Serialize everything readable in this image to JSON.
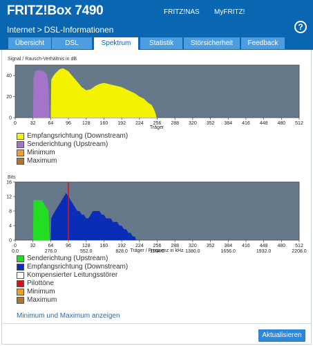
{
  "header": {
    "title": "FRITZ!Box 7490",
    "links": [
      "FRITZ!NAS",
      "MyFRITZ!"
    ]
  },
  "breadcrumb": {
    "parent": "Internet",
    "separator": ">",
    "current": "DSL-Informationen"
  },
  "help": {
    "label": "?"
  },
  "tabs": [
    "Übersicht",
    "DSL",
    "Spektrum",
    "Statistik",
    "Störsicherheit",
    "Feedback"
  ],
  "active_tab": "Spektrum",
  "charts": {
    "snr": {
      "title": "Signal / Rausch-Verhältnis in dB",
      "xlabel": "Träger"
    },
    "bits": {
      "title": "Bits",
      "xlabel": "Träger / Frequenz in kHz"
    }
  },
  "legend_snr": [
    {
      "label": "Empfangsrichtung (Downstream)",
      "color": "#f3f300"
    },
    {
      "label": "Senderichtung (Upstream)",
      "color": "#a374c8"
    },
    {
      "label": "Minimum",
      "color": "#f0a020"
    },
    {
      "label": "Maximum",
      "color": "#b07430"
    }
  ],
  "legend_bits": [
    {
      "label": "Senderichtung (Upstream)",
      "color": "#22dd22"
    },
    {
      "label": "Empfangsrichtung (Downstream)",
      "color": "#0a2db8"
    },
    {
      "label": "Kompensierter Leitungsstörer",
      "color": "#ffffff"
    },
    {
      "label": "Pilottöne",
      "color": "#e01010"
    },
    {
      "label": "Minimum",
      "color": "#f0a020"
    },
    {
      "label": "Maximum",
      "color": "#b07430"
    }
  ],
  "min_max_link": "Minimum und Maximum anzeigen",
  "refresh_button": "Aktualisieren",
  "chart_data": [
    {
      "type": "area",
      "title": "Signal / Rausch-Verhältnis in dB",
      "xlabel": "Träger",
      "ylabel": "",
      "xlim": [
        0,
        512
      ],
      "ylim": [
        0,
        50
      ],
      "xticks": [
        0,
        32,
        64,
        96,
        128,
        160,
        192,
        224,
        256,
        288,
        320,
        352,
        384,
        416,
        448,
        480,
        512
      ],
      "yticks": [
        0,
        20,
        40
      ],
      "grid": false,
      "series": [
        {
          "name": "Senderichtung (Upstream)",
          "x": [
            32,
            33,
            36,
            40,
            46,
            52,
            56,
            58,
            60,
            62
          ],
          "y": [
            0,
            37,
            44,
            45,
            45,
            44,
            42,
            39,
            30,
            0
          ]
        },
        {
          "name": "Empfangsrichtung (Downstream)",
          "x": [
            64,
            65,
            68,
            72,
            76,
            80,
            86,
            90,
            96,
            104,
            112,
            120,
            128,
            136,
            144,
            152,
            160,
            168,
            176,
            184,
            192,
            200,
            208,
            216,
            224,
            232,
            240,
            246,
            250,
            253,
            255
          ],
          "y": [
            0,
            36,
            39,
            42,
            44,
            46,
            47,
            46,
            44,
            39,
            34,
            29,
            26,
            27,
            30,
            32,
            33,
            32,
            31,
            30,
            29,
            27,
            25,
            23,
            20,
            18,
            14,
            12,
            8,
            4,
            0
          ]
        }
      ]
    },
    {
      "type": "area",
      "title": "Bits",
      "xlabel": "Träger / Frequenz in kHz",
      "ylabel": "",
      "xlim": [
        0,
        512
      ],
      "ylim": [
        0,
        16
      ],
      "xticks": [
        0,
        32,
        64,
        96,
        128,
        160,
        192,
        224,
        256,
        288,
        320,
        352,
        384,
        416,
        448,
        480,
        512
      ],
      "xticks_khz": [
        "0.0",
        "276.0",
        "552.0",
        "828.0",
        "1104.0",
        "1380.0",
        "1656.0",
        "1932.0",
        "2208.0"
      ],
      "yticks": [
        0,
        4,
        8,
        12,
        16
      ],
      "grid": false,
      "pilot_tone": 96,
      "series": [
        {
          "name": "Senderichtung (Upstream)",
          "x": [
            32,
            33,
            40,
            48,
            52,
            56,
            60,
            62
          ],
          "y": [
            0,
            11,
            11,
            11,
            10,
            9,
            8,
            0
          ]
        },
        {
          "name": "Empfangsrichtung (Downstream)",
          "x": [
            64,
            65,
            68,
            72,
            76,
            80,
            84,
            88,
            92,
            96,
            100,
            104,
            108,
            112,
            116,
            120,
            124,
            128,
            132,
            136,
            140,
            144,
            148,
            152,
            156,
            160,
            164,
            168,
            172,
            176,
            180,
            184,
            188,
            192,
            196,
            200,
            204,
            208,
            212,
            216,
            218
          ],
          "y": [
            0,
            6,
            7,
            8,
            9,
            10,
            11,
            12,
            13,
            12,
            11,
            10,
            9,
            8,
            8,
            7,
            7,
            6,
            6,
            7,
            8,
            8,
            8,
            8,
            7,
            7,
            6,
            6,
            6,
            5,
            5,
            5,
            4,
            4,
            3,
            3,
            2,
            2,
            1,
            1,
            0
          ]
        }
      ]
    }
  ]
}
